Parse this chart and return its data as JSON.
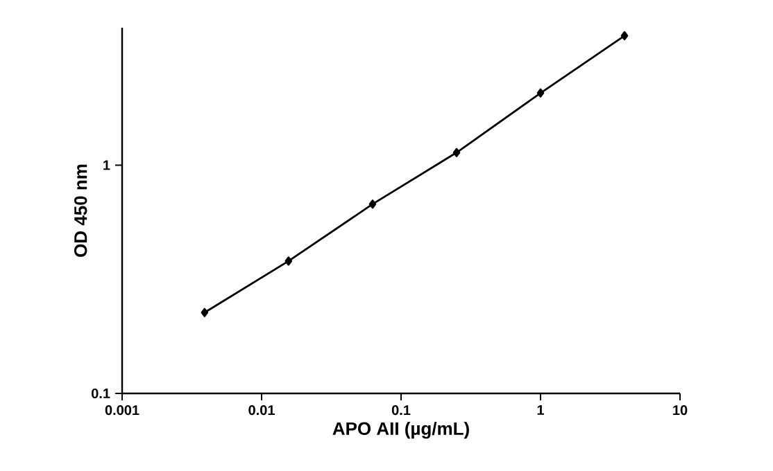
{
  "chart_data": {
    "type": "line",
    "xlabel": "APO AII (µg/mL)",
    "ylabel": "OD 450 nm",
    "x": [
      0.0039,
      0.0156,
      0.0625,
      0.25,
      1,
      4
    ],
    "series": [
      {
        "color": "#000000",
        "values": [
          0.226,
          0.38,
          0.675,
          1.135,
          2.07,
          3.69
        ]
      }
    ],
    "log": "xy",
    "xlim": [
      0.001,
      10
    ],
    "ylim": [
      0.1,
      4
    ],
    "xticks": [
      0.001,
      0.01,
      0.1,
      1,
      10
    ],
    "yticks": [
      0.1,
      1
    ],
    "marker": "diamond",
    "line_style": "solid",
    "grid": false
  }
}
